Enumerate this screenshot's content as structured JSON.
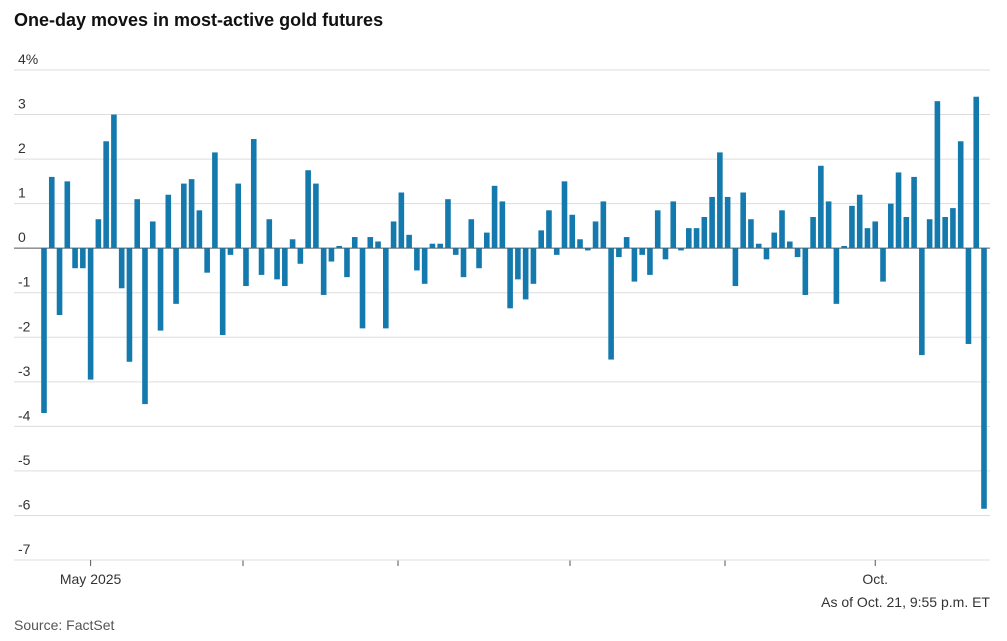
{
  "chart_data": {
    "type": "bar",
    "title": "One-day moves in most-active gold futures",
    "annotation": "As of Oct. 21, 9:55 p.m. ET",
    "source": "Source: FactSet",
    "color": "#1479ad",
    "categories": [
      null,
      null,
      null,
      null,
      null,
      null,
      "May 2025",
      null,
      null,
      null,
      null,
      null,
      null,
      null,
      null,
      null,
      null,
      null,
      null,
      null,
      null,
      null,
      null,
      null,
      null,
      null,
      null,
      null,
      null,
      null,
      null,
      null,
      null,
      null,
      null,
      null,
      null,
      null,
      null,
      null,
      null,
      null,
      null,
      null,
      null,
      null,
      null,
      null,
      null,
      null,
      null,
      null,
      null,
      null,
      null,
      null,
      null,
      null,
      null,
      null,
      null,
      null,
      null,
      null,
      null,
      null,
      null,
      null,
      null,
      null,
      null,
      null,
      null,
      null,
      null,
      null,
      null,
      null,
      null,
      null,
      null,
      null,
      null,
      null,
      null,
      null,
      null,
      null,
      null,
      null,
      null,
      null,
      null,
      null,
      null,
      null,
      null,
      null,
      null,
      null,
      null,
      null,
      null,
      null,
      null,
      null,
      null,
      "Oct.",
      null,
      null,
      null,
      null,
      null,
      null,
      null,
      null,
      null,
      null,
      null,
      null,
      null,
      null
    ],
    "values": [
      -3.7,
      1.6,
      -1.5,
      1.5,
      -0.45,
      -0.45,
      -2.95,
      0.65,
      2.4,
      3.0,
      -0.9,
      -2.55,
      1.1,
      -3.5,
      0.6,
      -1.85,
      1.2,
      -1.25,
      1.45,
      1.55,
      0.85,
      -0.55,
      2.15,
      -1.95,
      -0.15,
      1.45,
      -0.85,
      2.45,
      -0.6,
      0.65,
      -0.7,
      -0.85,
      0.2,
      -0.35,
      1.75,
      1.45,
      -1.05,
      -0.3,
      0.05,
      -0.65,
      0.25,
      -1.8,
      0.25,
      0.15,
      -1.8,
      0.6,
      1.25,
      0.3,
      -0.5,
      -0.8,
      0.1,
      0.1,
      1.1,
      -0.15,
      -0.65,
      0.65,
      -0.45,
      0.35,
      1.4,
      1.05,
      -1.35,
      -0.7,
      -1.15,
      -0.8,
      0.4,
      0.85,
      -0.15,
      1.5,
      0.75,
      0.2,
      -0.05,
      0.6,
      1.05,
      -2.5,
      -0.2,
      0.25,
      -0.75,
      -0.15,
      -0.6,
      0.85,
      -0.25,
      1.05,
      -0.05,
      0.45,
      0.45,
      0.7,
      1.15,
      2.15,
      1.15,
      -0.85,
      1.25,
      0.65,
      0.1,
      -0.25,
      0.35,
      0.85,
      0.15,
      -0.2,
      -1.05,
      0.7,
      1.85,
      1.05,
      -1.25,
      0.05,
      0.95,
      1.2,
      0.45,
      0.6,
      -0.75,
      1.0,
      1.7,
      0.7,
      1.6,
      -2.4,
      0.65,
      3.3,
      0.7,
      0.9,
      2.4,
      -2.15,
      3.4,
      -5.85
    ],
    "ylim": [
      -7,
      4
    ],
    "yticks": [
      {
        "value": 4,
        "label": "4%"
      },
      3,
      2,
      1,
      0,
      -1,
      -2,
      -3,
      -4,
      -5,
      -6,
      -7
    ],
    "grid": true
  }
}
